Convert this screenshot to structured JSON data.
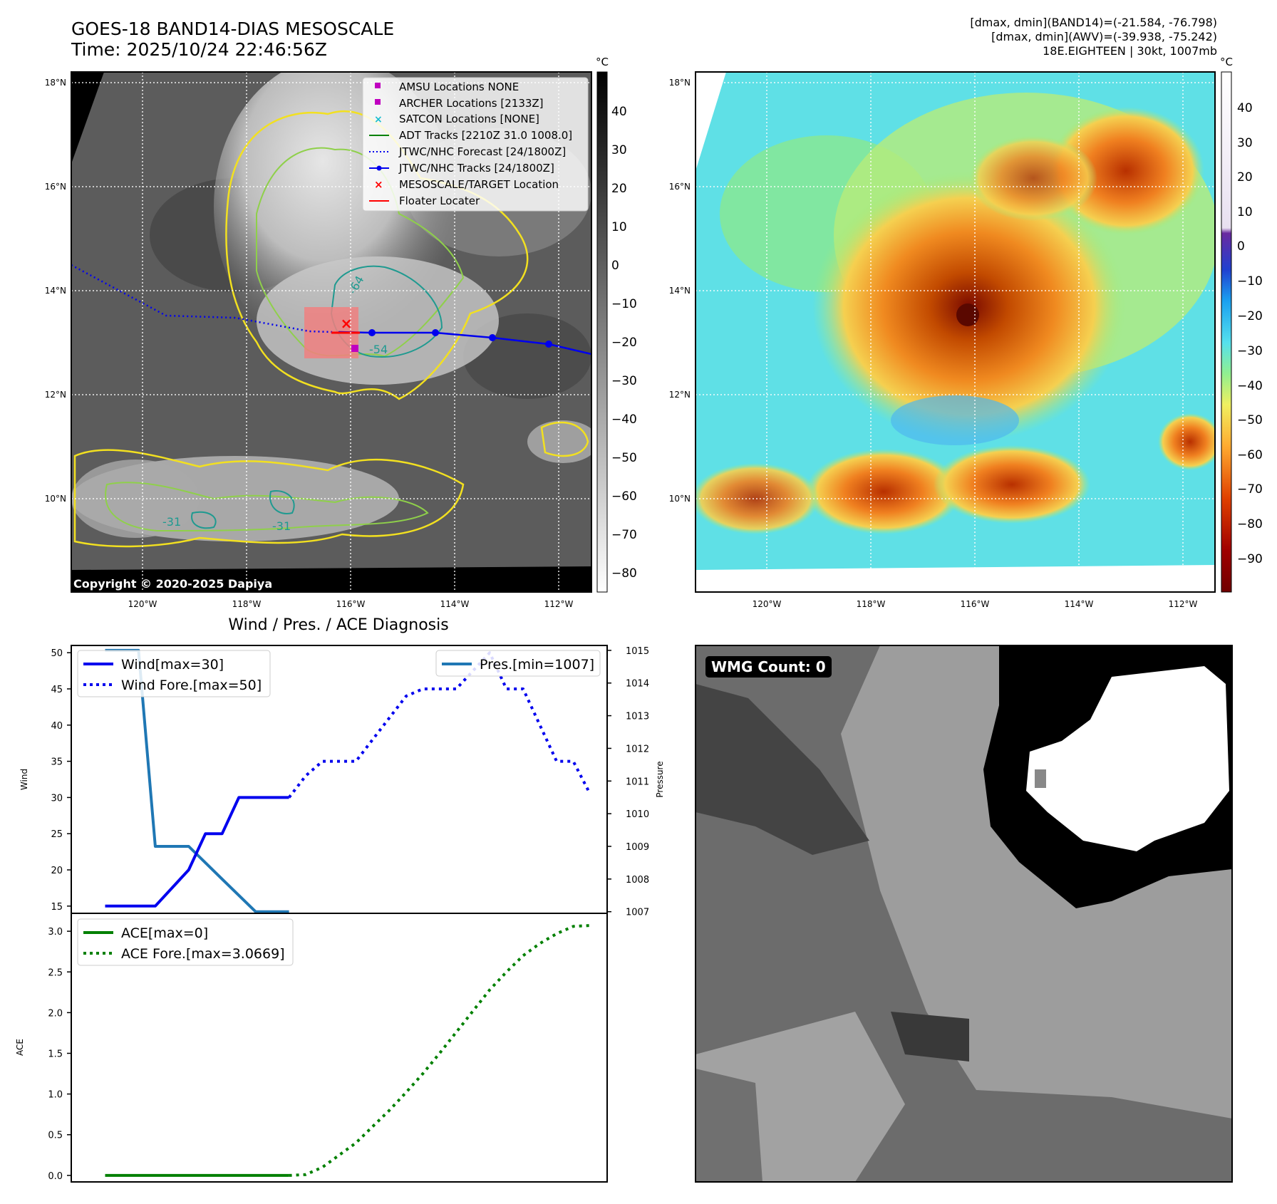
{
  "header": {
    "title_line1": "GOES-18 BAND14-DIAS MESOSCALE",
    "title_line2": "Time: 2025/10/24 22:46:56Z",
    "info_line1": "[dmax, dmin](BAND14)=(-21.584, -76.798)",
    "info_line2": "[dmax, dmin](AWV)=(-39.938, -75.242)",
    "info_line3": "18E.EIGHTEEN | 30kt, 1007mb"
  },
  "map_axes": {
    "lat_labels": [
      "18°N",
      "16°N",
      "14°N",
      "12°N",
      "10°N"
    ],
    "lon_labels": [
      "120°W",
      "118°W",
      "116°W",
      "114°W",
      "112°W"
    ]
  },
  "ir_panel": {
    "unit": "°C",
    "colorbar_ticks": [
      "40",
      "30",
      "20",
      "10",
      "0",
      "−10",
      "−20",
      "−30",
      "−40",
      "−50",
      "−60",
      "−70",
      "−80"
    ],
    "copyright": "Copyright © 2020-2025 Dapiya",
    "contour_labels": [
      "-64",
      "-54",
      "-31",
      "-31"
    ],
    "legend": [
      {
        "label": "AMSU Locations NONE",
        "color": "#c000c0",
        "marker": "square"
      },
      {
        "label": "ARCHER Locations [2133Z]",
        "color": "#c000c0",
        "marker": "square"
      },
      {
        "label": "SATCON Locations [NONE]",
        "color": "#17becf",
        "marker": "x"
      },
      {
        "label": "ADT Tracks [2210Z 31.0 1008.0]",
        "color": "#008000",
        "marker": "line"
      },
      {
        "label": "JTWC/NHC Forecast [24/1800Z]",
        "color": "#0000ff",
        "marker": "dotted"
      },
      {
        "label": "JTWC/NHC Tracks [24/1800Z]",
        "color": "#0000ff",
        "marker": "line-dot"
      },
      {
        "label": "MESOSCALE/TARGET Location",
        "color": "#ff0000",
        "marker": "x"
      },
      {
        "label": "Floater Locater",
        "color": "#ff0000",
        "marker": "line"
      }
    ]
  },
  "awv_panel": {
    "unit": "°C",
    "colorbar_ticks": [
      "40",
      "30",
      "20",
      "10",
      "0",
      "−10",
      "−20",
      "−30",
      "−40",
      "−50",
      "−60",
      "−70",
      "−80",
      "−90"
    ]
  },
  "wmg_panel": {
    "label": "WMG Count: 0"
  },
  "chart_data": [
    {
      "type": "line",
      "title": "Wind / Pres. / ACE Diagnosis",
      "ylabel": "Wind",
      "y2label": "Pressure",
      "ylim": [
        14,
        51
      ],
      "y2lim": [
        1006.95,
        1015.15
      ],
      "xlim": [
        0,
        30
      ],
      "yticks": [
        15,
        20,
        25,
        30,
        35,
        40,
        45,
        50
      ],
      "y2ticks": [
        1007,
        1008,
        1009,
        1010,
        1011,
        1012,
        1013,
        1014,
        1015
      ],
      "series": [
        {
          "name": "Wind[max=30]",
          "color": "#0000ee",
          "style": "solid",
          "axis": "left",
          "x": [
            1,
            4,
            6,
            7,
            8,
            9,
            10,
            11,
            12
          ],
          "values": [
            15,
            15,
            20,
            25,
            25,
            30,
            30,
            30,
            30
          ]
        },
        {
          "name": "Wind Fore.[max=50]",
          "color": "#0000ee",
          "style": "dotted",
          "axis": "left",
          "x": [
            12,
            13,
            14,
            15,
            16,
            17,
            18,
            19,
            20,
            21,
            22,
            23,
            24,
            25,
            26,
            27,
            28,
            29,
            30
          ],
          "values": [
            30,
            33,
            35,
            35,
            35,
            38,
            41,
            44,
            45,
            45,
            45,
            47.5,
            50,
            45,
            45,
            40,
            35,
            35,
            30.5
          ]
        },
        {
          "name": "Pres.[min=1007]",
          "color": "#1f77b4",
          "style": "solid",
          "axis": "right",
          "x": [
            1,
            3,
            4,
            6,
            8,
            10,
            12
          ],
          "values": [
            1015,
            1015,
            1009,
            1009,
            1008,
            1007,
            1007
          ]
        }
      ]
    },
    {
      "type": "line",
      "ylabel": "ACE",
      "ylim": [
        -0.08,
        3.22
      ],
      "xlim": [
        0,
        30
      ],
      "yticks": [
        0.0,
        0.5,
        1.0,
        1.5,
        2.0,
        2.5,
        3.0
      ],
      "series": [
        {
          "name": "ACE[max=0]",
          "color": "#008000",
          "style": "solid",
          "x": [
            1,
            12
          ],
          "values": [
            0,
            0
          ]
        },
        {
          "name": "ACE Fore.[max=3.0669]",
          "color": "#008000",
          "style": "dotted",
          "x": [
            12,
            13,
            14,
            15,
            16,
            17,
            18,
            19,
            20,
            21,
            22,
            23,
            24,
            25,
            26,
            27,
            28,
            29,
            30
          ],
          "values": [
            0,
            0.01,
            0.1,
            0.25,
            0.4,
            0.6,
            0.8,
            1.02,
            1.25,
            1.5,
            1.76,
            2.02,
            2.28,
            2.5,
            2.7,
            2.85,
            2.97,
            3.06,
            3.07
          ]
        }
      ]
    }
  ]
}
